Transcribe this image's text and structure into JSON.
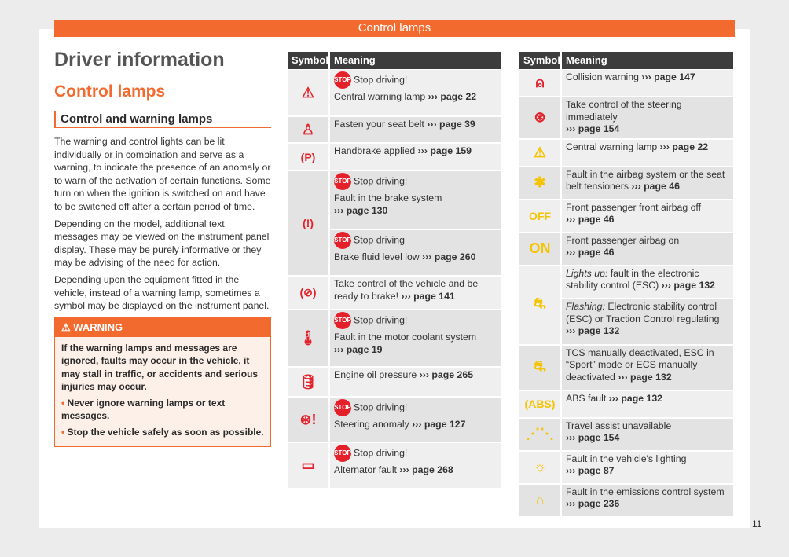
{
  "header": "Control lamps",
  "left": {
    "title": "Driver information",
    "subtitle": "Control lamps",
    "section": "Control and warning lamps",
    "paragraphs": [
      "The warning and control lights can be lit individually or in combination and serve as a warning, to indicate the presence of an anomaly or to warn of the activation of certain functions. Some turn on when the ignition is switched on and have to be switched off after a certain period of time.",
      "Depending on the model, additional text messages may be viewed on the instrument panel display. These may be purely informative or they may be advising of the need for action.",
      "Depending upon the equipment fitted in the vehicle, instead of a warning lamp, sometimes a symbol may be displayed on the instrument panel."
    ],
    "warning": {
      "title": "WARNING",
      "text": "If the warning lamps and messages are ignored, faults may occur in the vehicle, it may stall in traffic, or accidents and serious injuries may occur.",
      "bullets": [
        "Never ignore warning lamps or text messages.",
        "Stop the vehicle safely as soon as possible."
      ]
    }
  },
  "table_headers": {
    "symbol": "Symbol",
    "meaning": "Meaning"
  },
  "stop_label": "STOP",
  "colors": {
    "accent": "#f26a2e",
    "red": "#e4202a",
    "yellow": "#f5c400"
  },
  "table_middle": [
    {
      "icon": "warning-triangle-icon",
      "glyph": "⚠",
      "color": "red",
      "h": 58,
      "cells": [
        {
          "stop": "Stop driving!",
          "text": "Central warning lamp",
          "page": "››› page 22"
        }
      ]
    },
    {
      "icon": "seat-belt-icon",
      "glyph": "♙",
      "color": "red",
      "h": 32,
      "alt": true,
      "cells": [
        {
          "text": "Fasten your seat belt",
          "page": "››› page 39"
        }
      ]
    },
    {
      "icon": "handbrake-icon",
      "glyph": "(P)",
      "color": "red",
      "h": 33,
      "cells": [
        {
          "text": "Handbrake applied",
          "page": "››› page 159"
        }
      ]
    },
    {
      "icon": "brake-system-icon",
      "glyph": "(!)",
      "color": "red",
      "h": 132,
      "alt": true,
      "cells": [
        {
          "stop": "Stop driving!",
          "text": "Fault in the brake system",
          "page": "››› page 130",
          "br": true
        },
        {
          "stop": "Stop driving",
          "text": "Brake fluid level low",
          "page": "››› page 260"
        }
      ]
    },
    {
      "icon": "brake-assist-icon",
      "glyph": "(⊘)",
      "color": "red",
      "h": 41,
      "cells": [
        {
          "text": "Take control of the vehicle and be ready to brake!",
          "page": "››› page 141"
        }
      ]
    },
    {
      "icon": "coolant-icon",
      "glyph": "🌡",
      "color": "red",
      "h": 71,
      "alt": true,
      "cells": [
        {
          "stop": "Stop driving!",
          "text": "Fault in the motor coolant system",
          "page": "››› page 19",
          "br": true
        }
      ]
    },
    {
      "icon": "oil-pressure-icon",
      "glyph": "🛢",
      "color": "red",
      "h": 36,
      "cells": [
        {
          "text": "Engine oil pressure",
          "page": "››› page 265"
        }
      ]
    },
    {
      "icon": "steering-icon",
      "glyph": "⊛!",
      "color": "red",
      "h": 56,
      "alt": true,
      "cells": [
        {
          "stop": "Stop driving!",
          "text": "Steering anomaly",
          "page": "››› page 127"
        }
      ]
    },
    {
      "icon": "battery-icon",
      "glyph": "▭",
      "color": "red",
      "h": 57,
      "cells": [
        {
          "stop": "Stop driving!",
          "text": "Alternator fault",
          "page": "››› page 268"
        }
      ]
    }
  ],
  "table_right": [
    {
      "icon": "collision-warning-icon",
      "glyph": "⍝",
      "color": "red",
      "h": 33,
      "cells": [
        {
          "text": "Collision warning",
          "page": "››› page 147"
        }
      ]
    },
    {
      "icon": "steering-wheel-hands-icon",
      "glyph": "⊛",
      "color": "red",
      "h": 40,
      "alt": true,
      "cells": [
        {
          "text": "Take control of the steering immediately",
          "page": "››› page 154",
          "br": true
        }
      ]
    },
    {
      "icon": "warning-triangle-icon",
      "glyph": "⚠",
      "color": "yellow",
      "h": 33,
      "cells": [
        {
          "text": "Central warning lamp",
          "page": "››› page 22"
        }
      ]
    },
    {
      "icon": "airbag-icon",
      "glyph": "✱",
      "color": "yellow",
      "h": 40,
      "alt": true,
      "cells": [
        {
          "text": "Fault in the airbag system or the seat belt tensioners",
          "page": "››› page 46"
        }
      ]
    },
    {
      "icon": "passenger-airbag-off-icon",
      "glyph": "OFF",
      "color": "yellow",
      "h": 40,
      "cells": [
        {
          "text": "Front passenger front airbag off",
          "page": "››› page 46",
          "br": true
        }
      ]
    },
    {
      "icon": "passenger-airbag-on-icon",
      "glyph": "ON",
      "color": "yellow",
      "h": 40,
      "alt": true,
      "cells": [
        {
          "text": "Front passenger airbag on",
          "page": "››› page 46",
          "br": true
        }
      ]
    },
    {
      "icon": "esc-icon",
      "glyph": "⛐",
      "color": "yellow",
      "h": 99,
      "cells": [
        {
          "em": "Lights up:",
          "text": "fault in the electronic stability control (ESC)",
          "page": "››› page 132"
        },
        {
          "em": "Flashing:",
          "text": "Electronic stability control (ESC) or Traction Control regulating",
          "page": "››› page 132",
          "br": true
        }
      ]
    },
    {
      "icon": "tcs-off-icon",
      "glyph": "⛐",
      "color": "yellow",
      "h": 56,
      "alt": true,
      "cells": [
        {
          "text": "TCS manually deactivated, ESC in “Sport” mode or ECS manually deactivated",
          "page": "››› page 132"
        }
      ]
    },
    {
      "icon": "abs-icon",
      "glyph": "(ABS)",
      "color": "yellow",
      "h": 33,
      "cells": [
        {
          "text": "ABS fault",
          "page": "››› page 132"
        }
      ]
    },
    {
      "icon": "travel-assist-icon",
      "glyph": "⋰⋱",
      "color": "yellow",
      "h": 40,
      "alt": true,
      "cells": [
        {
          "text": "Travel assist unavailable",
          "page": "››› page 154",
          "br": true
        }
      ]
    },
    {
      "icon": "lighting-fault-icon",
      "glyph": "☼",
      "color": "yellow",
      "h": 40,
      "cells": [
        {
          "text": "Fault in the vehicle's lighting",
          "page": "››› page 87",
          "br": true
        }
      ]
    },
    {
      "icon": "engine-icon",
      "glyph": "⌂",
      "color": "yellow",
      "h": 40,
      "alt": true,
      "cells": [
        {
          "text": "Fault in the emissions control system",
          "page": "››› page 236",
          "br": true
        }
      ]
    }
  ],
  "page_number": "11"
}
